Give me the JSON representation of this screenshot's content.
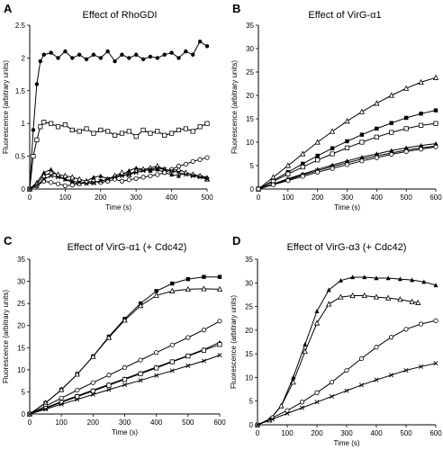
{
  "chart_data": [
    {
      "panel": "A",
      "type": "line",
      "title": "Effect of RhoGDI",
      "xlabel": "Time (s)",
      "ylabel": "Fluorescence (arbitrary units)",
      "xlim": [
        0,
        500
      ],
      "ylim": [
        0,
        2.5
      ],
      "xticks": [
        0,
        100,
        200,
        300,
        400,
        500
      ],
      "yticks": [
        0,
        0.5,
        1,
        1.5,
        2,
        2.5
      ],
      "ytick_labels": [
        "0",
        "0.5",
        "1",
        "1.5",
        "2",
        "2.5"
      ],
      "grid": false,
      "series": [
        {
          "marker": "filled-circle",
          "x": [
            0,
            10,
            20,
            30,
            40,
            60,
            80,
            100,
            120,
            140,
            160,
            180,
            200,
            220,
            240,
            260,
            280,
            300,
            320,
            340,
            360,
            380,
            400,
            420,
            440,
            460,
            480,
            500
          ],
          "y": [
            0,
            0.9,
            1.6,
            1.95,
            2.05,
            2.08,
            2.0,
            2.1,
            2.0,
            2.05,
            1.98,
            2.05,
            2.0,
            2.1,
            1.95,
            2.05,
            2.0,
            2.05,
            1.98,
            2.02,
            2.0,
            2.05,
            2.08,
            2.0,
            2.1,
            2.05,
            2.25,
            2.18
          ]
        },
        {
          "marker": "open-square",
          "x": [
            0,
            10,
            20,
            30,
            40,
            60,
            80,
            100,
            120,
            140,
            160,
            180,
            200,
            220,
            240,
            260,
            280,
            300,
            320,
            340,
            360,
            380,
            400,
            420,
            440,
            460,
            480,
            500
          ],
          "y": [
            0,
            0.5,
            0.75,
            0.95,
            1.02,
            1.0,
            0.95,
            0.98,
            0.9,
            0.88,
            0.92,
            0.85,
            0.9,
            0.88,
            0.82,
            0.85,
            0.88,
            0.8,
            0.9,
            0.85,
            0.88,
            0.82,
            0.85,
            0.9,
            0.92,
            0.88,
            0.95,
            1.0
          ]
        },
        {
          "marker": "filled-triangle",
          "x": [
            0,
            20,
            40,
            60,
            80,
            100,
            120,
            140,
            160,
            180,
            200,
            220,
            240,
            260,
            280,
            300,
            320,
            340,
            360,
            380,
            400,
            420,
            440,
            460,
            480,
            500
          ],
          "y": [
            0,
            0.1,
            0.25,
            0.3,
            0.2,
            0.15,
            0.1,
            0.08,
            0.12,
            0.18,
            0.2,
            0.15,
            0.18,
            0.22,
            0.28,
            0.32,
            0.3,
            0.28,
            0.3,
            0.25,
            0.22,
            0.2,
            0.25,
            0.22,
            0.2,
            0.18
          ]
        },
        {
          "marker": "open-triangle",
          "x": [
            0,
            20,
            40,
            60,
            80,
            100,
            120,
            140,
            160,
            180,
            200,
            220,
            240,
            260,
            280,
            300,
            320,
            340,
            360,
            380,
            400,
            420,
            440,
            460,
            480,
            500
          ],
          "y": [
            0,
            0.08,
            0.2,
            0.25,
            0.22,
            0.2,
            0.18,
            0.15,
            0.12,
            0.1,
            0.12,
            0.15,
            0.2,
            0.25,
            0.22,
            0.28,
            0.3,
            0.32,
            0.35,
            0.3,
            0.28,
            0.3,
            0.25,
            0.22,
            0.2,
            0.15
          ]
        },
        {
          "marker": "open-circle",
          "x": [
            0,
            20,
            40,
            60,
            80,
            100,
            120,
            140,
            160,
            180,
            200,
            220,
            240,
            260,
            280,
            300,
            320,
            340,
            360,
            380,
            400,
            420,
            440,
            460,
            480,
            500
          ],
          "y": [
            0,
            0.05,
            0.12,
            0.1,
            0.08,
            0.05,
            0.06,
            0.08,
            0.1,
            0.12,
            0.1,
            0.12,
            0.15,
            0.12,
            0.14,
            0.16,
            0.18,
            0.2,
            0.22,
            0.25,
            0.3,
            0.35,
            0.38,
            0.42,
            0.45,
            0.48
          ]
        },
        {
          "marker": "cross",
          "x": [
            0,
            20,
            40,
            60,
            80,
            100,
            120,
            140,
            160,
            180,
            200,
            220,
            240,
            260,
            280,
            300,
            320,
            340,
            360,
            380,
            400,
            420,
            440,
            460,
            480,
            500
          ],
          "y": [
            0,
            0.05,
            0.15,
            0.2,
            0.18,
            0.15,
            0.12,
            0.1,
            0.08,
            0.1,
            0.12,
            0.15,
            0.18,
            0.2,
            0.22,
            0.25,
            0.28,
            0.3,
            0.32,
            0.3,
            0.28,
            0.25,
            0.22,
            0.2,
            0.18,
            0.15
          ]
        }
      ]
    },
    {
      "panel": "B",
      "type": "line",
      "title": "Effect of VirG-α1",
      "xlabel": "Time (s)",
      "ylabel": "Fluorescence (arbitrary units)",
      "xlim": [
        0,
        600
      ],
      "ylim": [
        0,
        35
      ],
      "xticks": [
        0,
        100,
        200,
        300,
        400,
        500,
        600
      ],
      "yticks": [
        0,
        5,
        10,
        15,
        20,
        25,
        30,
        35
      ],
      "grid": false,
      "series": [
        {
          "marker": "open-triangle",
          "x": [
            0,
            50,
            100,
            150,
            200,
            250,
            300,
            350,
            400,
            450,
            500,
            550,
            600
          ],
          "y": [
            0,
            2.5,
            5,
            7.5,
            10,
            12.3,
            14.5,
            16.5,
            18.3,
            20,
            21.5,
            22.8,
            23.8
          ]
        },
        {
          "marker": "filled-square",
          "x": [
            0,
            50,
            100,
            150,
            200,
            250,
            300,
            350,
            400,
            450,
            500,
            550,
            600
          ],
          "y": [
            0,
            1.8,
            3.6,
            5.4,
            7.1,
            8.7,
            10.2,
            11.6,
            12.9,
            14.1,
            15.2,
            16.1,
            16.8
          ]
        },
        {
          "marker": "open-square",
          "x": [
            0,
            50,
            100,
            150,
            200,
            250,
            300,
            350,
            400,
            450,
            500,
            550,
            600
          ],
          "y": [
            0,
            1.6,
            3.2,
            4.7,
            6.2,
            7.5,
            8.8,
            10,
            11.1,
            12.1,
            12.9,
            13.6,
            14
          ]
        },
        {
          "marker": "filled-triangle",
          "x": [
            0,
            50,
            100,
            150,
            200,
            250,
            300,
            350,
            400,
            450,
            500,
            550,
            600
          ],
          "y": [
            0,
            1.1,
            2.2,
            3.2,
            4.2,
            5.1,
            6,
            6.8,
            7.5,
            8.2,
            8.8,
            9.3,
            9.7
          ]
        },
        {
          "marker": "cross",
          "x": [
            0,
            50,
            100,
            150,
            200,
            250,
            300,
            350,
            400,
            450,
            500,
            550,
            600
          ],
          "y": [
            0,
            1,
            2,
            3,
            3.9,
            4.8,
            5.6,
            6.4,
            7.1,
            7.7,
            8.3,
            8.8,
            9.2
          ]
        },
        {
          "marker": "open-circle",
          "x": [
            0,
            50,
            100,
            150,
            200,
            250,
            300,
            350,
            400,
            450,
            500,
            550,
            600
          ],
          "y": [
            0,
            0.9,
            1.8,
            2.7,
            3.6,
            4.4,
            5.2,
            6,
            6.7,
            7.4,
            8,
            8.5,
            9
          ]
        }
      ]
    },
    {
      "panel": "C",
      "type": "line",
      "title": "Effect of VirG-α1 (+ Cdc42)",
      "xlabel": "Time (s)",
      "ylabel": "Fluorescence (arbitrary units)",
      "xlim": [
        0,
        600
      ],
      "ylim": [
        0,
        35
      ],
      "xticks": [
        0,
        100,
        200,
        300,
        400,
        500,
        600
      ],
      "yticks": [
        0,
        5,
        10,
        15,
        20,
        25,
        30,
        35
      ],
      "grid": false,
      "series": [
        {
          "marker": "filled-square",
          "x": [
            0,
            50,
            100,
            150,
            200,
            250,
            300,
            350,
            400,
            450,
            500,
            550,
            600
          ],
          "y": [
            0,
            2.5,
            5.5,
            9,
            13,
            17.5,
            21.5,
            25,
            27.8,
            29.5,
            30.5,
            31,
            31
          ]
        },
        {
          "marker": "open-triangle",
          "x": [
            0,
            50,
            100,
            150,
            200,
            250,
            300,
            350,
            400,
            450,
            500,
            550,
            600
          ],
          "y": [
            0,
            2.5,
            5.5,
            9,
            13,
            17.3,
            21.2,
            24.5,
            26.8,
            27.8,
            28.2,
            28.3,
            28.2
          ]
        },
        {
          "marker": "open-circle",
          "x": [
            0,
            50,
            100,
            150,
            200,
            250,
            300,
            350,
            400,
            450,
            500,
            550,
            600
          ],
          "y": [
            0,
            1.8,
            3.6,
            5.4,
            7.1,
            8.8,
            10.5,
            12.2,
            13.9,
            15.6,
            17.3,
            19,
            21
          ]
        },
        {
          "marker": "filled-triangle",
          "x": [
            0,
            50,
            100,
            150,
            200,
            250,
            300,
            350,
            400,
            450,
            500,
            550,
            600
          ],
          "y": [
            0,
            1.4,
            2.8,
            4.1,
            5.4,
            6.7,
            8,
            9.3,
            10.6,
            11.9,
            13.2,
            14.6,
            16.2
          ]
        },
        {
          "marker": "open-square",
          "x": [
            0,
            50,
            100,
            150,
            200,
            250,
            300,
            350,
            400,
            450,
            500,
            550,
            600
          ],
          "y": [
            0,
            1.3,
            2.6,
            3.9,
            5.2,
            6.5,
            7.8,
            9.1,
            10.4,
            11.8,
            13.1,
            14.4,
            15.7
          ]
        },
        {
          "marker": "cross",
          "x": [
            0,
            50,
            100,
            150,
            200,
            250,
            300,
            350,
            400,
            450,
            500,
            550,
            600
          ],
          "y": [
            0,
            1.1,
            2.2,
            3.3,
            4.4,
            5.5,
            6.6,
            7.6,
            8.7,
            9.8,
            10.9,
            12,
            13.3
          ]
        }
      ]
    },
    {
      "panel": "D",
      "type": "line",
      "title": "Effect of VirG-α3 (+ Cdc42)",
      "xlabel": "Time (s)",
      "ylabel": "Fluorescence (arbitrary units)",
      "xlim": [
        0,
        600
      ],
      "ylim": [
        0,
        35
      ],
      "xticks": [
        0,
        100,
        200,
        300,
        400,
        500,
        600
      ],
      "yticks": [
        0,
        5,
        10,
        15,
        20,
        25,
        30,
        35
      ],
      "grid": false,
      "series": [
        {
          "marker": "filled-triangle",
          "x": [
            0,
            40,
            80,
            120,
            160,
            200,
            240,
            280,
            320,
            360,
            400,
            440,
            480,
            520,
            560,
            600
          ],
          "y": [
            0,
            1,
            4,
            10,
            17,
            24,
            28.5,
            30.5,
            31.2,
            31.2,
            31,
            31,
            30.8,
            30.6,
            30.2,
            29.5
          ]
        },
        {
          "marker": "open-triangle",
          "x": [
            0,
            40,
            80,
            120,
            160,
            200,
            240,
            280,
            320,
            360,
            400,
            440,
            480,
            520,
            540
          ],
          "y": [
            0,
            1,
            4,
            9,
            15.5,
            21.5,
            25.5,
            27,
            27.3,
            27.3,
            27,
            26.8,
            26.5,
            26,
            25.8
          ]
        },
        {
          "marker": "open-circle",
          "x": [
            0,
            50,
            100,
            150,
            200,
            250,
            300,
            350,
            400,
            450,
            500,
            550,
            600
          ],
          "y": [
            0,
            1.5,
            3,
            4.8,
            6.8,
            9,
            11.5,
            14,
            16.4,
            18.5,
            20.2,
            21.3,
            22
          ]
        },
        {
          "marker": "cross",
          "x": [
            0,
            50,
            100,
            150,
            200,
            250,
            300,
            350,
            400,
            450,
            500,
            550,
            600
          ],
          "y": [
            0,
            1.2,
            2.4,
            3.6,
            4.8,
            6,
            7.2,
            8.4,
            9.5,
            10.5,
            11.5,
            12.3,
            13
          ]
        }
      ]
    }
  ]
}
